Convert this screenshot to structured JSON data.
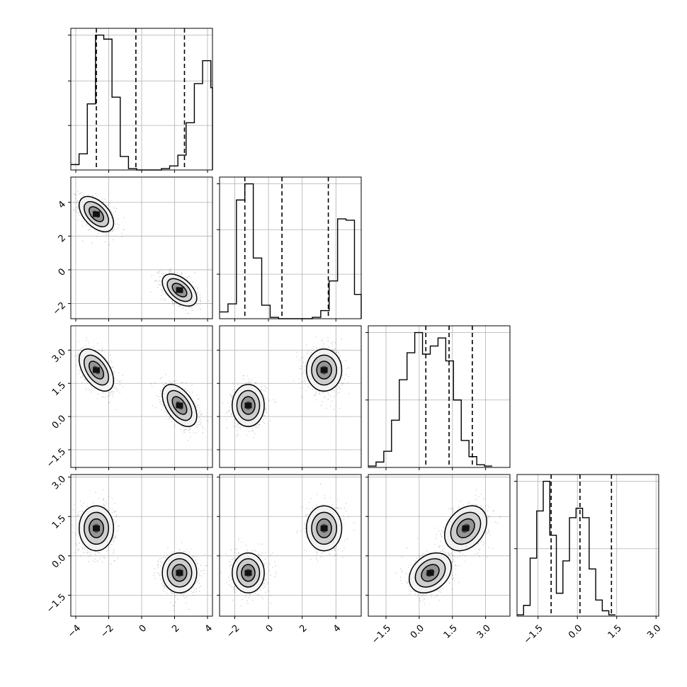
{
  "chart_data": {
    "type": "corner",
    "title": "",
    "colors": {
      "hist": "#000000",
      "grid": "#b0b0b0",
      "points": "#000000",
      "frame": "#000000"
    },
    "grid": true,
    "parameters": [
      {
        "range": [
          -4.3,
          4.3
        ],
        "quantiles": [
          -2.75,
          -0.35,
          2.6
        ],
        "bin_start": -4.3,
        "bin_width": 0.5,
        "hist": [
          0.04,
          0.12,
          0.49,
          1.0,
          0.97,
          0.54,
          0.1,
          0.01,
          0.0,
          0.0,
          0.0,
          0.01,
          0.03,
          0.11,
          0.35,
          0.64,
          0.81,
          0.61,
          0.21,
          0.07,
          0.02,
          0.0
        ],
        "ticks": [
          -4,
          -2,
          0,
          2,
          4
        ],
        "tick_labels": [
          "−4",
          "−2",
          "0",
          "2",
          "4"
        ],
        "hist_ticks": [
          0.33,
          0.66,
          1.0
        ]
      },
      {
        "range": [
          -2.9,
          5.5
        ],
        "quantiles": [
          -1.4,
          0.8,
          3.55
        ],
        "bin_start": -2.9,
        "bin_width": 0.5,
        "hist": [
          0.05,
          0.11,
          0.88,
          1.0,
          0.45,
          0.1,
          0.01,
          0.0,
          0.0,
          0.0,
          0.0,
          0.01,
          0.06,
          0.28,
          0.74,
          0.73,
          0.18,
          0.04,
          0.0
        ],
        "ticks": [
          -2,
          0,
          2,
          4
        ],
        "tick_labels": [
          "−2",
          "0",
          "2",
          "4"
        ],
        "hist_ticks": [
          0.33,
          0.66,
          1.0
        ]
      },
      {
        "range": [
          -2.3,
          4.1
        ],
        "quantiles": [
          0.3,
          1.35,
          2.4
        ],
        "bin_start": -2.3,
        "bin_width": 0.35,
        "hist": [
          0.01,
          0.04,
          0.12,
          0.35,
          0.65,
          0.85,
          1.0,
          0.84,
          0.9,
          0.96,
          0.79,
          0.5,
          0.2,
          0.08,
          0.02,
          0.01
        ],
        "ticks": [
          -1.5,
          0.0,
          1.5,
          3.0
        ],
        "tick_labels": [
          "−1.5",
          "0.0",
          "1.5",
          "3.0"
        ],
        "hist_ticks": [
          0.5,
          1.0
        ]
      },
      {
        "range": [
          -2.3,
          3.1
        ],
        "quantiles": [
          -1.0,
          0.1,
          1.3
        ],
        "bin_start": -2.3,
        "bin_width": 0.25,
        "hist": [
          0.01,
          0.08,
          0.43,
          0.78,
          1.0,
          0.6,
          0.17,
          0.41,
          0.73,
          0.8,
          0.73,
          0.35,
          0.12,
          0.04,
          0.01
        ],
        "ticks": [
          -1.5,
          0.0,
          1.5,
          3.0
        ],
        "tick_labels": [
          "−1.5",
          "0.0",
          "1.5",
          "3.0"
        ],
        "hist_ticks": [
          0.5,
          1.0
        ]
      }
    ],
    "modes": [
      {
        "mean": [
          -2.75,
          3.3,
          2.1,
          1.05
        ],
        "sd": [
          0.55,
          0.55,
          0.5,
          0.45
        ]
      },
      {
        "mean": [
          2.3,
          -1.2,
          0.5,
          -0.65
        ],
        "sd": [
          0.55,
          0.5,
          0.5,
          0.4
        ]
      }
    ],
    "corr": [
      [
        1,
        -0.5,
        -0.5,
        0.0
      ],
      [
        -0.5,
        1,
        0.0,
        0.0
      ],
      [
        -0.5,
        0.0,
        1,
        0.3
      ],
      [
        0.0,
        0.0,
        0.3,
        1
      ]
    ],
    "contour_levels": [
      0.8,
      1.35,
      1.9
    ]
  }
}
